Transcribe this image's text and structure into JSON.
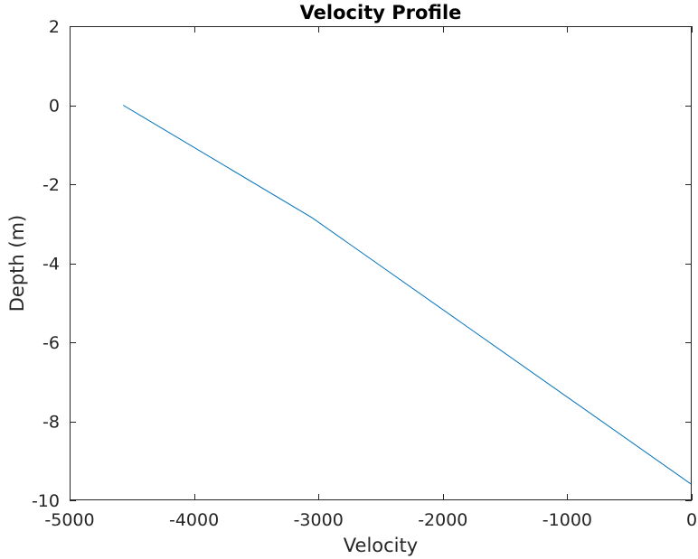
{
  "chart_data": {
    "type": "line",
    "title": "Velocity Profile",
    "xlabel": "Velocity",
    "ylabel": "Depth (m)",
    "xlim": [
      -5000,
      0
    ],
    "ylim": [
      -10,
      2
    ],
    "xticks": [
      -5000,
      -4000,
      -3000,
      -2000,
      -1000,
      0
    ],
    "yticks": [
      2,
      0,
      -2,
      -4,
      -6,
      -8,
      -10
    ],
    "xtick_labels": [
      "-5000",
      "-4000",
      "-3000",
      "-2000",
      "-1000",
      "0"
    ],
    "ytick_labels": [
      "2",
      "0",
      "-2",
      "-4",
      "-6",
      "-8",
      "-10"
    ],
    "grid": false,
    "series": [
      {
        "color": "#0072BD",
        "x": [
          -4570,
          -3050,
          0
        ],
        "y": [
          0,
          -2.85,
          -9.6
        ]
      }
    ]
  }
}
